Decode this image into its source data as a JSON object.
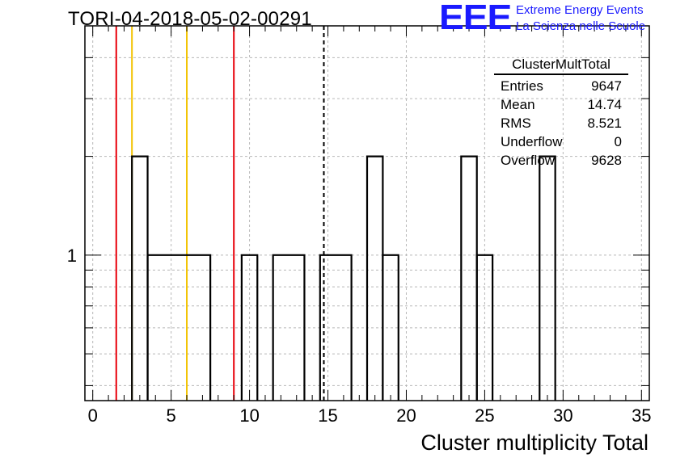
{
  "page": {
    "title": "TORI-04-2018-05-02-00291"
  },
  "logo": {
    "mark": "EEE",
    "line1": "Extreme Energy Events",
    "line2": "La Scienza nelle Scuole",
    "color": "#1a1aff"
  },
  "stats": {
    "title": "ClusterMultTotal",
    "rows": [
      {
        "label": "Entries",
        "value": "9647"
      },
      {
        "label": "Mean",
        "value": "14.74"
      },
      {
        "label": "RMS",
        "value": "8.521"
      },
      {
        "label": "Underflow",
        "value": "0"
      },
      {
        "label": "Overflow",
        "value": "9628"
      }
    ]
  },
  "chart_data": {
    "type": "histogram",
    "title": "TORI-04-2018-05-02-00291",
    "xlabel": "Cluster multiplicity Total",
    "ylabel": "",
    "xlim": [
      -0.5,
      35.5
    ],
    "ylim": [
      0.36,
      5
    ],
    "log_y": true,
    "grid": true,
    "x_ticks": [
      0,
      5,
      10,
      15,
      20,
      25,
      30,
      35
    ],
    "x_tick_labels": [
      "0",
      "5",
      "10",
      "15",
      "20",
      "25",
      "30",
      "35"
    ],
    "y_tick_labels": [
      {
        "value": 1,
        "label": "1"
      }
    ],
    "bins": [
      {
        "low": 2.5,
        "high": 3.5,
        "count": 2
      },
      {
        "low": 3.5,
        "high": 7.5,
        "count": 1
      },
      {
        "low": 9.5,
        "high": 10.5,
        "count": 1
      },
      {
        "low": 11.5,
        "high": 13.5,
        "count": 1
      },
      {
        "low": 14.5,
        "high": 16.5,
        "count": 1
      },
      {
        "low": 17.5,
        "high": 18.5,
        "count": 2
      },
      {
        "low": 18.5,
        "high": 19.5,
        "count": 1
      },
      {
        "low": 23.5,
        "high": 24.5,
        "count": 2
      },
      {
        "low": 24.5,
        "high": 25.5,
        "count": 1
      },
      {
        "low": 28.5,
        "high": 29.5,
        "count": 2
      }
    ],
    "reference_lines": [
      {
        "x": 1.5,
        "color": "#e8000b",
        "style": "solid"
      },
      {
        "x": 2.5,
        "color": "#f2c200",
        "style": "solid"
      },
      {
        "x": 6,
        "color": "#f2c200",
        "style": "solid"
      },
      {
        "x": 9,
        "color": "#e8000b",
        "style": "solid"
      },
      {
        "x": 14.74,
        "color": "#000000",
        "style": "dashed"
      }
    ]
  }
}
